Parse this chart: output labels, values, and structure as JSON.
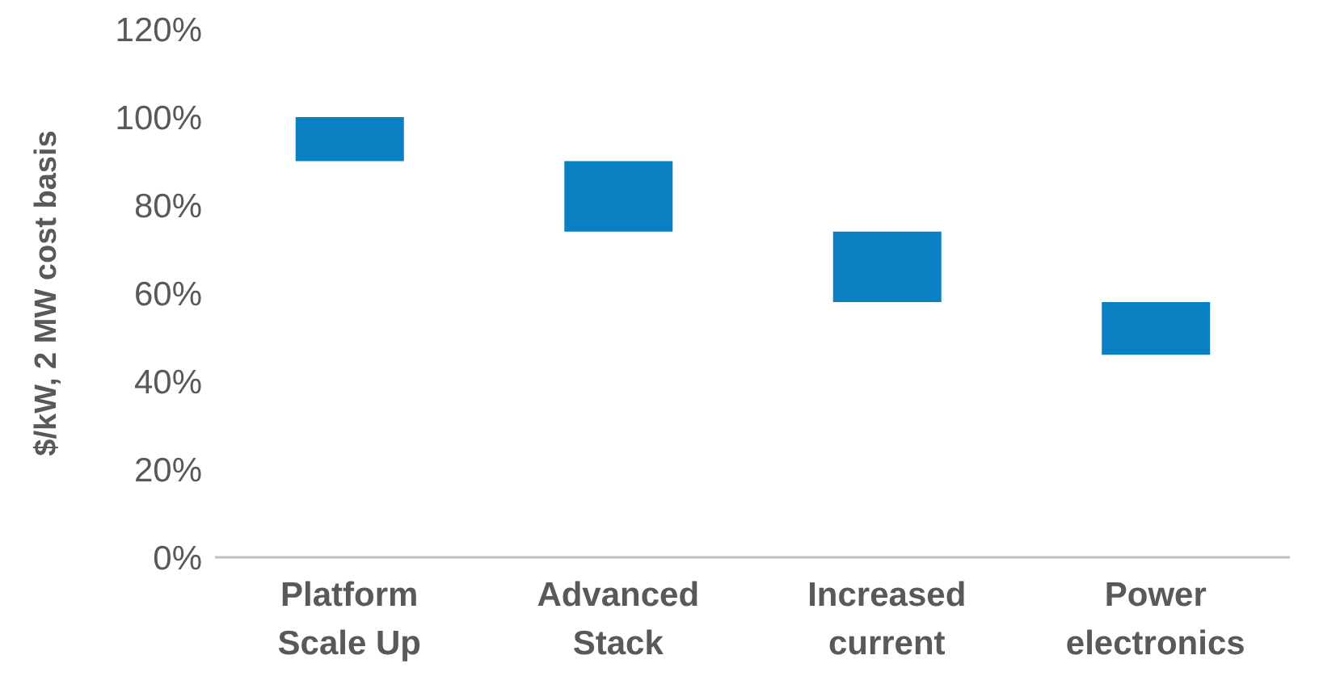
{
  "chart_data": {
    "type": "bar",
    "ylabel": "$/kW, 2 MW cost basis",
    "categories": [
      "Platform\nScale Up",
      "Advanced\nStack",
      "Increased\ncurrent",
      "Power\nelectronics"
    ],
    "values": [
      10,
      16,
      16,
      12
    ],
    "base": [
      90,
      74,
      58,
      46
    ],
    "color": "#0a7fc1",
    "ylim": [
      0,
      120
    ],
    "yticks": [
      {
        "value": 0,
        "label": "0%"
      },
      {
        "value": 20,
        "label": "20%"
      },
      {
        "value": 40,
        "label": "40%"
      },
      {
        "value": 60,
        "label": "60%"
      },
      {
        "value": 80,
        "label": "80%"
      },
      {
        "value": 100,
        "label": "100%"
      },
      {
        "value": 120,
        "label": "120%"
      }
    ],
    "grid": false,
    "legend": false
  }
}
